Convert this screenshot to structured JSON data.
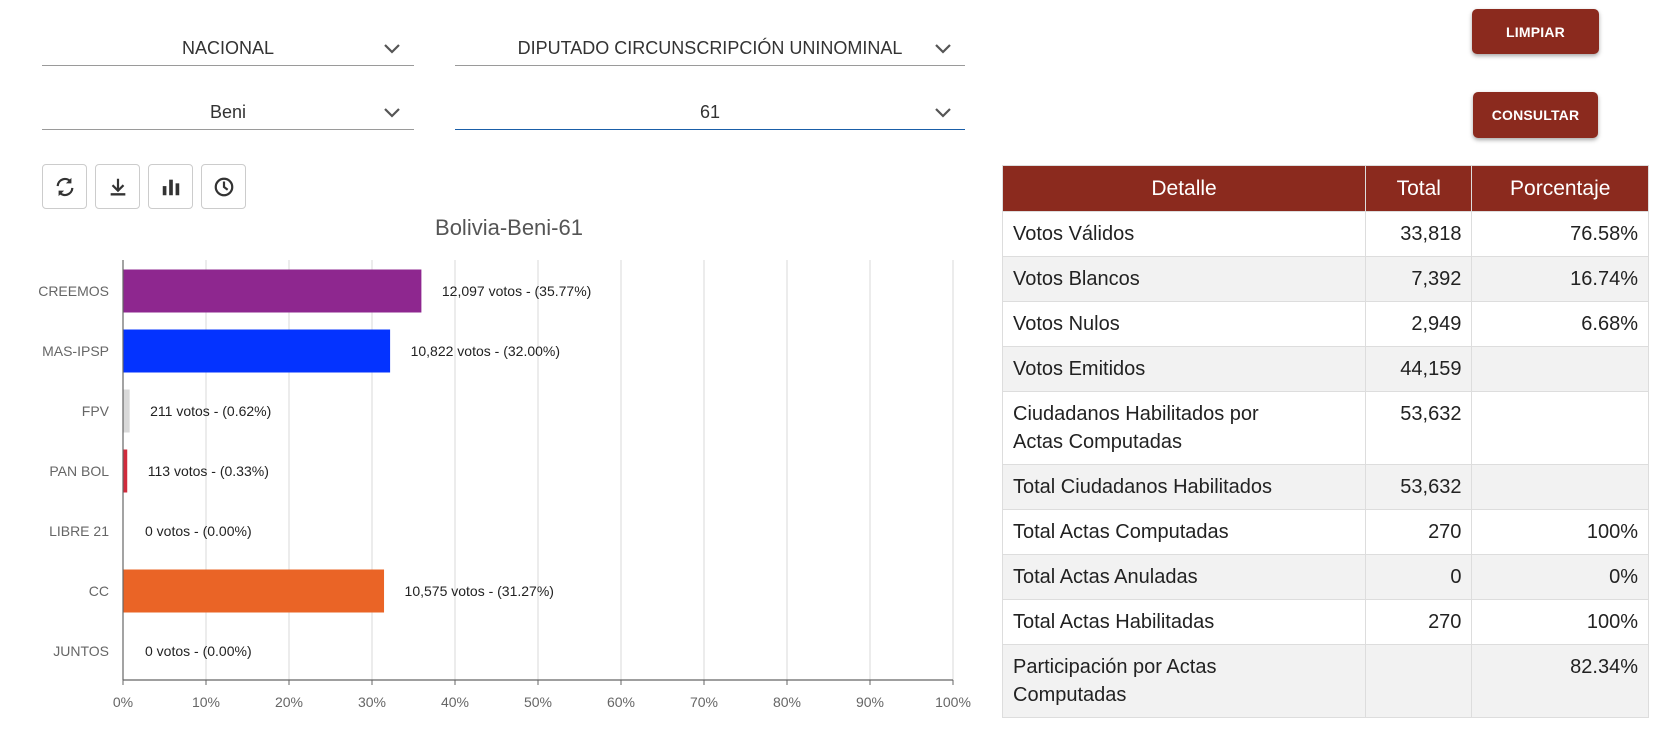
{
  "filters": {
    "level": "NACIONAL",
    "election": "DIPUTADO CIRCUNSCRIPCIÓN UNINOMINAL",
    "department": "Beni",
    "circumscription": "61"
  },
  "buttons": {
    "clear": "LIMPIAR",
    "query": "CONSULTAR"
  },
  "toolbar": {
    "icons": [
      "refresh-icon",
      "download-icon",
      "bar-chart-icon",
      "clock-icon"
    ]
  },
  "colors": {
    "brand": "#8b2a1e",
    "select_active": "#1a5ea8"
  },
  "chart_data": {
    "type": "bar",
    "orientation": "horizontal",
    "title": "Bolivia-Beni-61",
    "categories": [
      "CREEMOS",
      "MAS-IPSP",
      "FPV",
      "PAN BOL",
      "LIBRE 21",
      "CC",
      "JUNTOS"
    ],
    "values": [
      35.77,
      32.0,
      0.62,
      0.33,
      0.0,
      31.27,
      0.0
    ],
    "votes": [
      "12,097",
      "10,822",
      "211",
      "113",
      "0",
      "10,575",
      "0"
    ],
    "data_labels": [
      "12,097 votos - (35.77%)",
      "10,822 votos - (32.00%)",
      "211 votos - (0.62%)",
      "113 votos - (0.33%)",
      "0 votos - (0.00%)",
      "10,575 votos - (31.27%)",
      "0 votos - (0.00%)"
    ],
    "colors": [
      "#8e278f",
      "#0433ff",
      "#d9d9d9",
      "#d02b3c",
      "#ffffff",
      "#ea6426",
      "#ffffff"
    ],
    "xlim": [
      0,
      100
    ],
    "xticks": [
      "0%",
      "10%",
      "20%",
      "30%",
      "40%",
      "50%",
      "60%",
      "70%",
      "80%",
      "90%",
      "100%"
    ],
    "grid": true
  },
  "table": {
    "headers": [
      "Detalle",
      "Total",
      "Porcentaje"
    ],
    "rows": [
      [
        "Votos Válidos",
        "33,818",
        "76.58%"
      ],
      [
        "Votos Blancos",
        "7,392",
        "16.74%"
      ],
      [
        "Votos Nulos",
        "2,949",
        "6.68%"
      ],
      [
        "Votos Emitidos",
        "44,159",
        ""
      ],
      [
        "Ciudadanos Habilitados por Actas Computadas",
        "53,632",
        ""
      ],
      [
        "Total Ciudadanos Habilitados",
        "53,632",
        ""
      ],
      [
        "Total Actas Computadas",
        "270",
        "100%"
      ],
      [
        "Total Actas Anuladas",
        "0",
        "0%"
      ],
      [
        "Total Actas Habilitadas",
        "270",
        "100%"
      ],
      [
        "Participación por Actas Computadas",
        "",
        "82.34%"
      ]
    ]
  }
}
